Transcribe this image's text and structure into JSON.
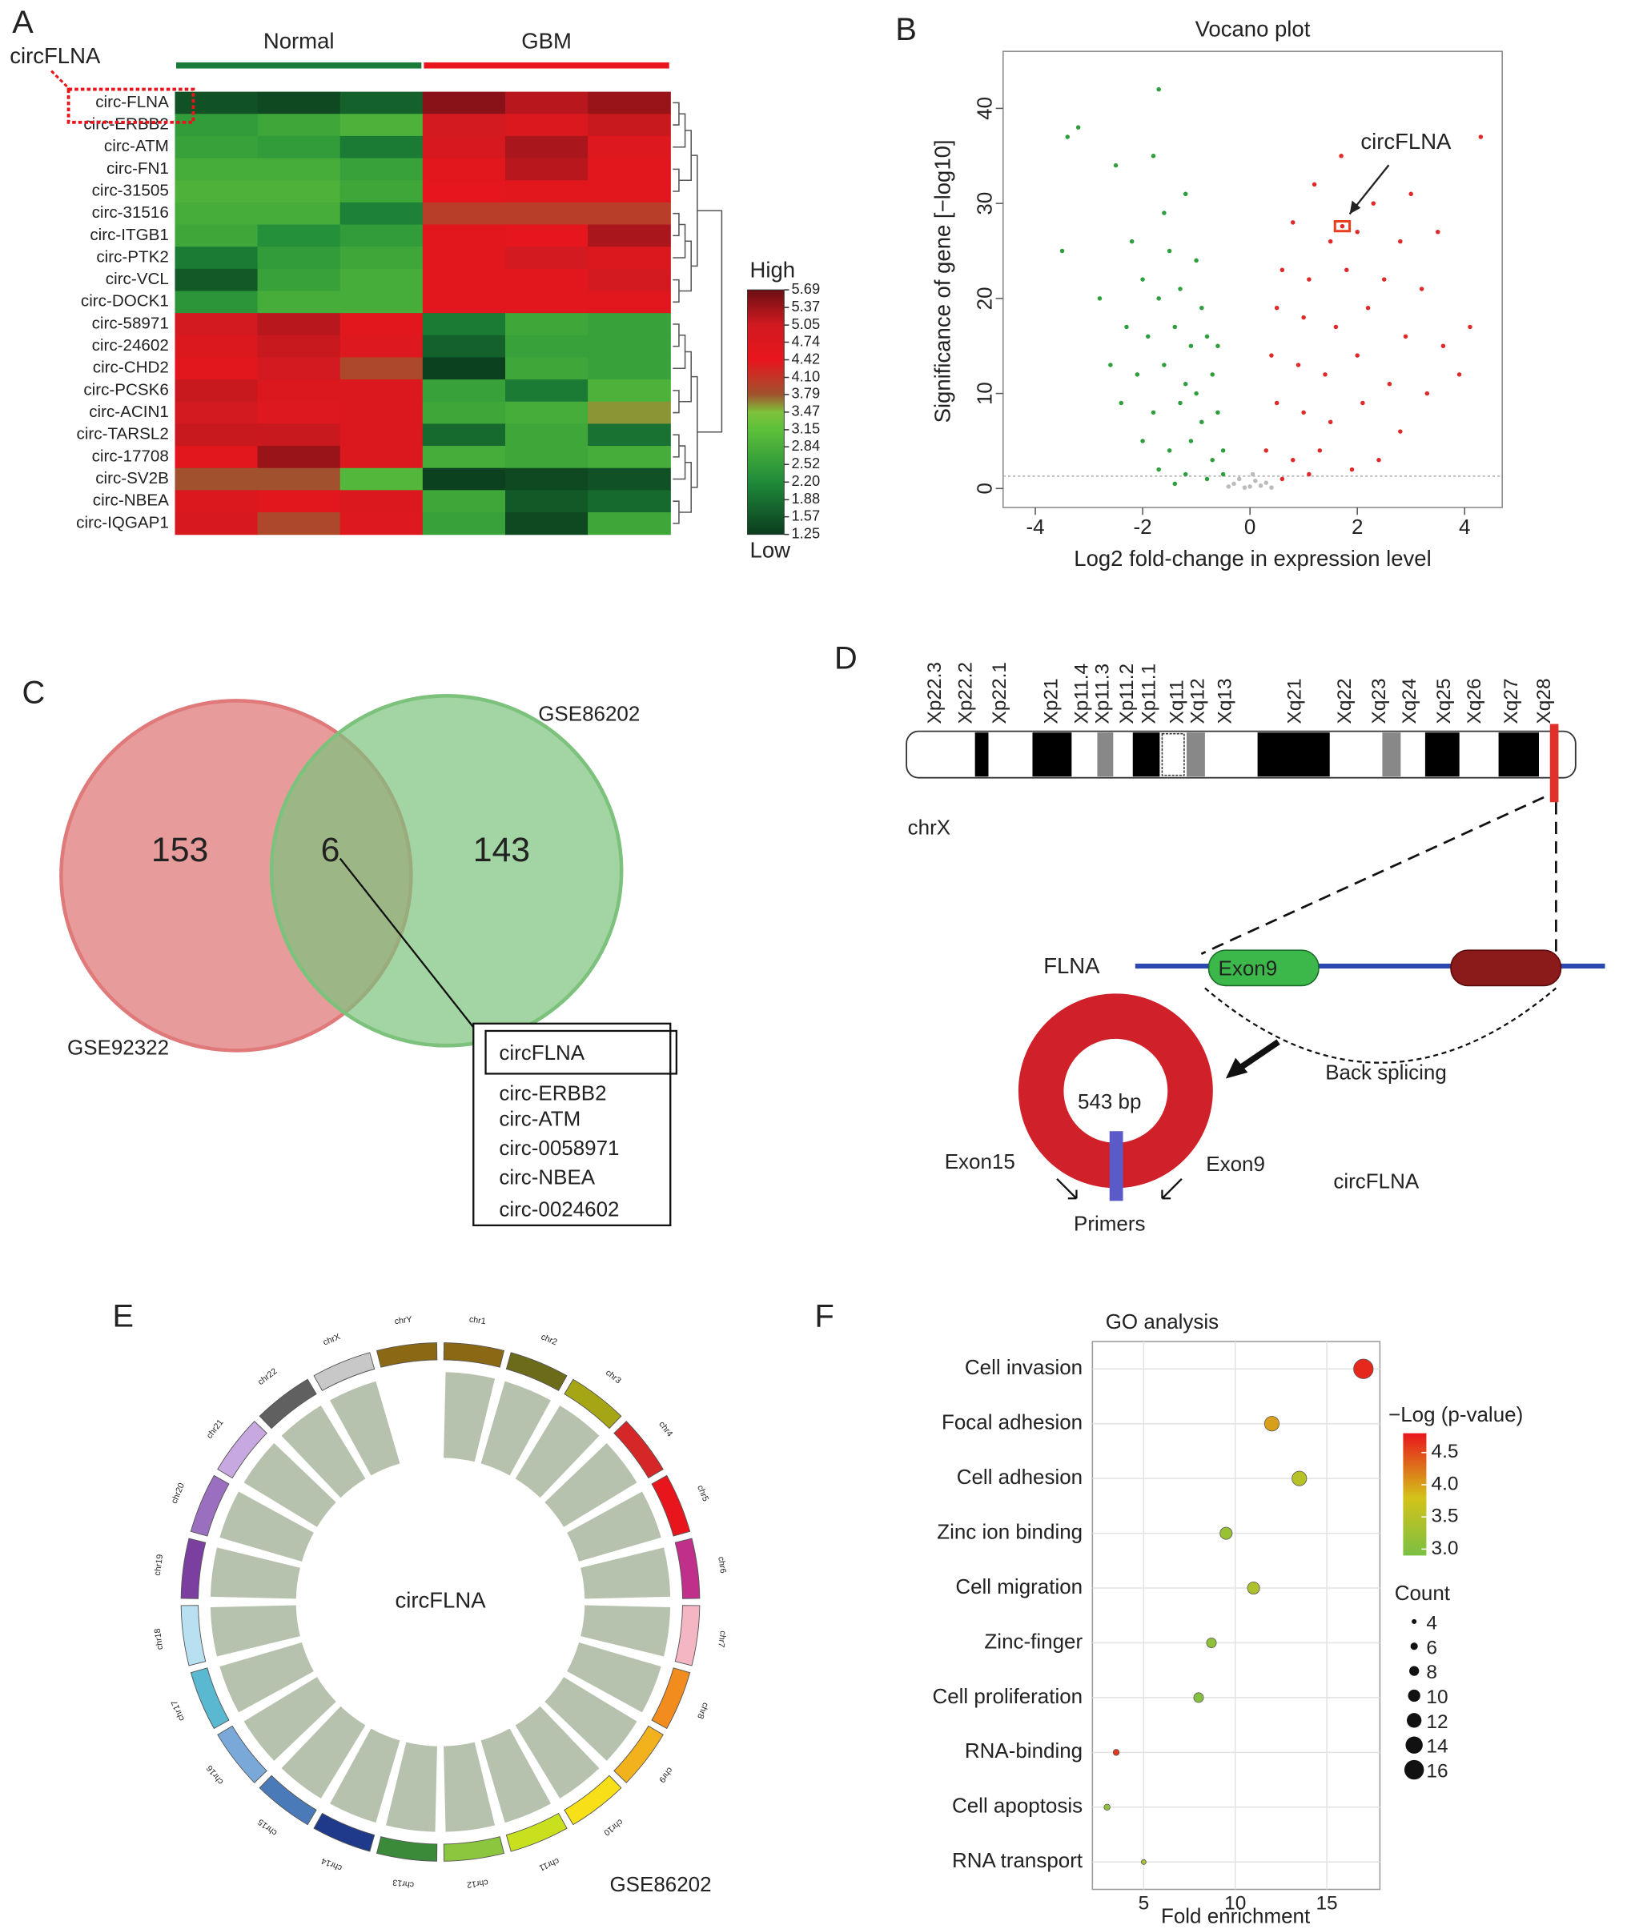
{
  "chart_data": [
    {
      "type": "heatmap",
      "panel": "A",
      "highlight": "circFLNA",
      "column_groups": [
        {
          "name": "Normal",
          "color": "#1a7a3a"
        },
        {
          "name": "GBM",
          "color": "#e8161c"
        }
      ],
      "categories": [
        "circ-FLNA",
        "circ-ERBB2",
        "circ-ATM",
        "circ-FN1",
        "circ-31505",
        "circ-31516",
        "circ-ITGB1",
        "circ-PTK2",
        "circ-VCL",
        "circ-DOCK1",
        "circ-58971",
        "circ-24602",
        "circ-CHD2",
        "circ-PCSK6",
        "circ-ACIN1",
        "circ-TARSL2",
        "circ-17708",
        "circ-SV2B",
        "circ-NBEA",
        "circ-IQGAP1"
      ],
      "values": [
        [
          1.5,
          1.4,
          1.7,
          5.5,
          5.2,
          5.4
        ],
        [
          2.5,
          2.7,
          2.9,
          5.0,
          4.8,
          5.1
        ],
        [
          2.6,
          2.5,
          2.0,
          4.9,
          5.3,
          4.7
        ],
        [
          2.8,
          2.8,
          2.6,
          4.6,
          5.2,
          4.6
        ],
        [
          2.9,
          2.9,
          2.7,
          4.5,
          4.6,
          4.6
        ],
        [
          2.8,
          2.8,
          2.1,
          4.0,
          4.0,
          4.0
        ],
        [
          2.7,
          2.3,
          2.5,
          4.6,
          4.5,
          5.3
        ],
        [
          2.0,
          2.5,
          2.7,
          4.6,
          5.0,
          4.8
        ],
        [
          1.6,
          2.6,
          2.8,
          4.6,
          4.6,
          5.0
        ],
        [
          2.4,
          2.8,
          2.8,
          4.6,
          4.6,
          4.6
        ],
        [
          5.0,
          5.2,
          4.6,
          2.0,
          2.7,
          2.6
        ],
        [
          4.8,
          5.1,
          4.7,
          1.7,
          2.6,
          2.6
        ],
        [
          4.6,
          5.0,
          3.9,
          1.3,
          2.7,
          2.6
        ],
        [
          5.1,
          4.8,
          4.8,
          2.6,
          2.0,
          2.9
        ],
        [
          5.0,
          4.7,
          4.8,
          2.7,
          2.8,
          3.6
        ],
        [
          5.1,
          5.1,
          4.8,
          1.8,
          2.7,
          1.9
        ],
        [
          4.6,
          5.4,
          4.8,
          2.8,
          2.7,
          2.8
        ],
        [
          3.8,
          3.8,
          3.0,
          1.3,
          1.4,
          1.5
        ],
        [
          4.8,
          4.6,
          4.8,
          2.7,
          1.6,
          1.8
        ],
        [
          4.9,
          3.9,
          4.7,
          2.6,
          1.4,
          2.7
        ]
      ],
      "colorscale": [
        [
          1.25,
          "#0b3d1e"
        ],
        [
          2.2,
          "#1f8a3a"
        ],
        [
          3.15,
          "#5cc03a"
        ],
        [
          3.47,
          "#7ec23a"
        ],
        [
          3.79,
          "#a0522d"
        ],
        [
          4.42,
          "#e8161c"
        ],
        [
          5.05,
          "#d01a20"
        ],
        [
          5.69,
          "#6b0f14"
        ]
      ],
      "colorbar_high": "High",
      "colorbar_low": "Low",
      "colorbar_ticks": [
        5.69,
        5.37,
        5.05,
        4.74,
        4.42,
        {
          "value": 4.1,
          "label": "4.10"
        },
        3.79,
        3.47,
        3.15,
        2.84,
        2.52,
        {
          "value": 2.2,
          "label": "2.20"
        },
        1.88,
        1.57,
        1.25
      ]
    },
    {
      "type": "scatter",
      "panel": "B",
      "title": "Vocano plot",
      "xlabel": "Log2 fold-change in expression level",
      "ylabel": "Significance of gene [−log10]",
      "xlim": [
        -4.6,
        4.7
      ],
      "ylim": [
        -2,
        46
      ],
      "xticks": [
        -4,
        -2,
        0,
        2,
        4
      ],
      "yticks": [
        0,
        10,
        20,
        30,
        40
      ],
      "hline": 1.3,
      "annotation": {
        "text": "circFLNA",
        "x": 1.72,
        "y": 27.6
      },
      "series": [
        {
          "color": "#2e9e3e",
          "x": [
            -3.4,
            -3.2,
            -3.5,
            -2.5,
            -1.8,
            -1.6,
            -1.2,
            -2.2,
            -1.5,
            -1.0,
            -2.8,
            -2.0,
            -1.7,
            -1.3,
            -0.9,
            -2.3,
            -1.9,
            -1.4,
            -1.1,
            -0.8,
            -2.6,
            -2.1,
            -1.6,
            -1.2,
            -0.7,
            -2.4,
            -1.8,
            -1.3,
            -0.9,
            -0.6,
            -2.0,
            -1.5,
            -1.1,
            -0.7,
            -0.5,
            -1.7,
            -1.2,
            -0.8,
            -1.4,
            -0.5,
            -1.7,
            -0.6,
            -1.0
          ],
          "values": [
            37,
            38,
            25,
            34,
            35,
            29,
            31,
            26,
            25,
            24,
            20,
            22,
            20,
            21,
            19,
            17,
            16,
            17,
            15,
            16,
            13,
            12,
            13,
            11,
            12,
            9,
            8,
            9,
            7,
            8,
            5,
            4,
            5,
            3,
            4,
            2,
            1.5,
            1,
            0.5,
            1.5,
            42,
            15,
            10
          ]
        },
        {
          "color": "#e02a2a",
          "x": [
            4.3,
            1.7,
            1.2,
            2.3,
            3.0,
            0.8,
            1.5,
            2.0,
            2.8,
            3.5,
            0.6,
            1.1,
            1.8,
            2.5,
            3.2,
            4.1,
            0.5,
            1.0,
            1.6,
            2.2,
            2.9,
            3.6,
            0.4,
            0.9,
            1.4,
            2.0,
            2.6,
            3.3,
            0.5,
            1.0,
            1.5,
            2.1,
            2.8,
            0.3,
            0.8,
            1.3,
            1.9,
            0.6,
            1.1,
            2.4,
            3.9,
            1.72
          ],
          "values": [
            37,
            35,
            32,
            30,
            31,
            28,
            26,
            27,
            26,
            27,
            23,
            22,
            23,
            22,
            21,
            17,
            19,
            18,
            17,
            19,
            16,
            15,
            14,
            13,
            12,
            14,
            11,
            10,
            9,
            8,
            7,
            9,
            6,
            4,
            3,
            4,
            2,
            1,
            1.5,
            3,
            12,
            27.6
          ]
        },
        {
          "color": "#bbbbbb",
          "x": [
            -0.3,
            -0.2,
            0,
            0.1,
            0.2,
            -0.1,
            0.3,
            -0.4,
            0.4,
            0.05
          ],
          "values": [
            0.5,
            1,
            0.2,
            0.8,
            0.3,
            0.1,
            0.6,
            0.2,
            0.1,
            1.5
          ]
        }
      ]
    },
    {
      "type": "bubble",
      "panel": "F",
      "title": "GO analysis",
      "xlabel": "Fold enrichment",
      "categories": [
        "Cell invasion",
        "Focal adhesion",
        "Cell adhesion",
        "Zinc ion binding",
        "Cell migration",
        "Zinc-finger",
        "Cell proliferation",
        "RNA-binding",
        "Cell apoptosis",
        "RNA transport"
      ],
      "values": [
        17,
        12,
        13.5,
        9.5,
        11,
        8.7,
        8,
        3.5,
        3,
        5
      ],
      "counts": [
        16,
        12,
        12,
        10,
        10,
        8,
        8,
        5,
        5,
        4
      ],
      "log_p": [
        4.7,
        4.0,
        3.5,
        3.2,
        3.4,
        3.1,
        3.0,
        4.6,
        3.1,
        3.3
      ],
      "xlim": [
        2.2,
        17.9
      ],
      "xticks": [
        5,
        10,
        15
      ],
      "colorbar": {
        "title": "−Log (p-value)",
        "lim": [
          2.9,
          4.8
        ],
        "ticks": [
          {
            "value": 4.5,
            "label": "4.5"
          },
          {
            "value": 4,
            "label": "4.0"
          },
          {
            "value": 3.5,
            "label": "3.5"
          },
          {
            "value": 3,
            "label": "3.0"
          }
        ],
        "colorscale": [
          [
            2.9,
            "#7bc043"
          ],
          [
            3.8,
            "#d4c21a"
          ],
          [
            4.8,
            "#e8161c"
          ]
        ]
      },
      "size_legend": {
        "title": "Count",
        "values": [
          4,
          6,
          8,
          10,
          12,
          14,
          16
        ]
      }
    }
  ],
  "venn": {
    "panel": "C",
    "sets": [
      {
        "name": "GSE92322",
        "color": "#e07a7a"
      },
      {
        "name": "GSE86202",
        "color": "#7cc27c"
      }
    ],
    "counts": [
      "153",
      "6",
      "143"
    ],
    "overlap_list": [
      {
        "text": "circFLNA",
        "color": "#e8161c"
      },
      {
        "text": "circ-ERBB2",
        "color": "#e8161c"
      },
      {
        "text": "circ-ATM",
        "color": "#e8161c"
      },
      {
        "text": "circ-0058971",
        "color": "#2a3ea8"
      },
      {
        "text": "circ-NBEA",
        "color": "#2a3ea8"
      },
      {
        "text": "circ-0024602",
        "color": "#2a3ea8"
      }
    ]
  },
  "gene_diagram": {
    "panel": "D",
    "bands": [
      "Xp22.3",
      "Xp22.2",
      "Xp22.1",
      "Xp21",
      "Xp11.4",
      "Xp11.3",
      "Xp11.2",
      "Xp11.1",
      "Xq11",
      "Xq12",
      "Xq13",
      "Xq21",
      "Xq22",
      "Xq23",
      "Xq24",
      "Xq25",
      "Xq26",
      "Xq27",
      "Xq28"
    ],
    "chromosome": "chrX",
    "gene": "FLNA",
    "exon_a": "Exon9",
    "back_splicing": "Back splicing",
    "size": "543 bp",
    "exon_left": "Exon15",
    "exon_right": "Exon9",
    "circ_name": "circFLNA",
    "primers": "Primers"
  },
  "circos": {
    "panel": "E",
    "center_label": "circFLNA",
    "dataset": "GSE86202",
    "chromosomes": [
      {
        "name": "chr1",
        "color": "#8b6914"
      },
      {
        "name": "chr2",
        "color": "#6b6b1a"
      },
      {
        "name": "chr3",
        "color": "#a5a516"
      },
      {
        "name": "chr4",
        "color": "#d62728"
      },
      {
        "name": "chr5",
        "color": "#e8161c"
      },
      {
        "name": "chr6",
        "color": "#c0308a"
      },
      {
        "name": "chr7",
        "color": "#f4b6c2"
      },
      {
        "name": "chr8",
        "color": "#f28c1e"
      },
      {
        "name": "chr9",
        "color": "#f2b21e"
      },
      {
        "name": "chr10",
        "color": "#f7e017"
      },
      {
        "name": "chr11",
        "color": "#c8e01e"
      },
      {
        "name": "chr12",
        "color": "#8cc63f"
      },
      {
        "name": "chr13",
        "color": "#3a8a3a"
      },
      {
        "name": "chr14",
        "color": "#1f3a8a"
      },
      {
        "name": "chr15",
        "color": "#4a7ab8"
      },
      {
        "name": "chr16",
        "color": "#7aa8d8"
      },
      {
        "name": "chr17",
        "color": "#5ab8d0"
      },
      {
        "name": "chr18",
        "color": "#b8e0f0"
      },
      {
        "name": "chr19",
        "color": "#7b3fa0"
      },
      {
        "name": "chr20",
        "color": "#9b6fc0"
      },
      {
        "name": "chr21",
        "color": "#c8a8e0"
      },
      {
        "name": "chr22",
        "color": "#606060"
      },
      {
        "name": "chrX",
        "color": "#c8c8c8"
      },
      {
        "name": "chrY",
        "color": "#8b6914"
      }
    ]
  }
}
